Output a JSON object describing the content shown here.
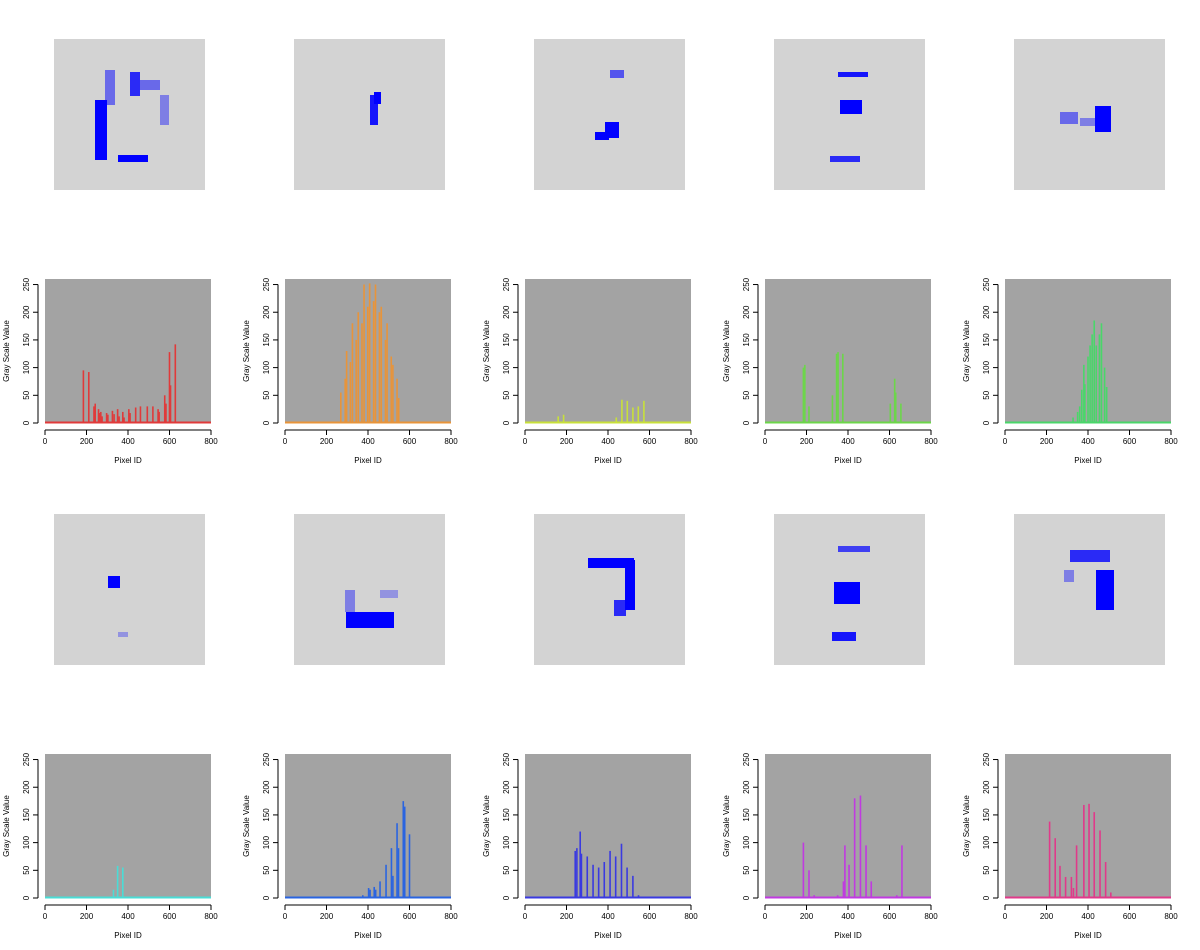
{
  "chart_data": [
    {
      "type": "bar",
      "xlabel": "Pixel ID",
      "ylabel": "Gray Scale Value",
      "xlim": [
        0,
        800
      ],
      "ylim": [
        0,
        260
      ],
      "xticks": [
        0,
        200,
        400,
        600,
        800
      ],
      "yticks": [
        0,
        50,
        100,
        150,
        200,
        250
      ],
      "color": "#e03a3a",
      "image_color": "#0000ff",
      "background": "#a3a3a3",
      "grid": false,
      "x": [
        185,
        211,
        236,
        242,
        258,
        264,
        269,
        275,
        297,
        303,
        325,
        333,
        350,
        357,
        375,
        381,
        404,
        410,
        437,
        460,
        493,
        520,
        545,
        550,
        577,
        583,
        600,
        605,
        628
      ],
      "values": [
        95,
        92,
        30,
        35,
        25,
        18,
        20,
        12,
        18,
        15,
        22,
        16,
        25,
        12,
        20,
        10,
        25,
        18,
        28,
        30,
        30,
        30,
        25,
        20,
        50,
        35,
        128,
        68,
        142
      ]
    },
    {
      "type": "bar",
      "xlabel": "Pixel ID",
      "ylabel": "Gray Scale Value",
      "xlim": [
        0,
        800
      ],
      "ylim": [
        0,
        260
      ],
      "xticks": [
        0,
        200,
        400,
        600,
        800
      ],
      "yticks": [
        0,
        50,
        100,
        150,
        200,
        250
      ],
      "color": "#e8943a",
      "image_color": "#0000ff",
      "background": "#a3a3a3",
      "grid": false,
      "x": [
        269,
        290,
        297,
        315,
        325,
        343,
        353,
        371,
        381,
        399,
        408,
        427,
        436,
        455,
        464,
        484,
        492,
        512,
        520,
        540,
        548
      ],
      "values": [
        55,
        80,
        130,
        110,
        180,
        150,
        200,
        180,
        250,
        210,
        252,
        220,
        250,
        200,
        210,
        150,
        180,
        120,
        105,
        80,
        45
      ]
    },
    {
      "type": "bar",
      "xlabel": "Pixel ID",
      "ylabel": "Gray Scale Value",
      "xlim": [
        0,
        800
      ],
      "ylim": [
        0,
        260
      ],
      "xticks": [
        0,
        200,
        400,
        600,
        800
      ],
      "yticks": [
        0,
        50,
        100,
        150,
        200,
        250
      ],
      "color": "#c8e03a",
      "image_color": "#0000ff",
      "background": "#a3a3a3",
      "grid": false,
      "x": [
        160,
        186,
        440,
        467,
        493,
        520,
        546,
        573
      ],
      "values": [
        12,
        15,
        10,
        42,
        40,
        28,
        30,
        40
      ]
    },
    {
      "type": "bar",
      "xlabel": "Pixel ID",
      "ylabel": "Gray Scale Value",
      "xlim": [
        0,
        800
      ],
      "ylim": [
        0,
        260
      ],
      "xticks": [
        0,
        200,
        400,
        600,
        800
      ],
      "yticks": [
        0,
        50,
        100,
        150,
        200,
        250
      ],
      "color": "#6cd64a",
      "image_color": "#0000ff",
      "background": "#a3a3a3",
      "grid": false,
      "x": [
        185,
        192,
        212,
        325,
        345,
        352,
        375,
        604,
        625,
        630,
        655
      ],
      "values": [
        100,
        105,
        30,
        50,
        125,
        128,
        125,
        35,
        80,
        55,
        35
      ]
    },
    {
      "type": "bar",
      "xlabel": "Pixel ID",
      "ylabel": "Gray Scale Value",
      "xlim": [
        0,
        800
      ],
      "ylim": [
        0,
        260
      ],
      "xticks": [
        0,
        200,
        400,
        600,
        800
      ],
      "yticks": [
        0,
        50,
        100,
        150,
        200,
        250
      ],
      "color": "#4ad66a",
      "image_color": "#0000ff",
      "background": "#a3a3a3",
      "grid": false,
      "x": [
        328,
        350,
        360,
        370,
        380,
        385,
        400,
        410,
        420,
        430,
        440,
        455,
        465,
        480,
        490
      ],
      "values": [
        10,
        20,
        30,
        60,
        105,
        70,
        120,
        140,
        160,
        185,
        140,
        160,
        180,
        100,
        65
      ]
    },
    {
      "type": "bar",
      "xlabel": "Pixel ID",
      "ylabel": "Gray Scale Value",
      "xlim": [
        0,
        800
      ],
      "ylim": [
        0,
        260
      ],
      "xticks": [
        0,
        200,
        400,
        600,
        800
      ],
      "yticks": [
        0,
        50,
        100,
        150,
        200,
        250
      ],
      "color": "#4adcd6",
      "image_color": "#0000ff",
      "background": "#a3a3a3",
      "grid": false,
      "x": [
        330,
        350,
        375,
        630
      ],
      "values": [
        15,
        58,
        55,
        3
      ]
    },
    {
      "type": "bar",
      "xlabel": "Pixel ID",
      "ylabel": "Gray Scale Value",
      "xlim": [
        0,
        800
      ],
      "ylim": [
        0,
        260
      ],
      "xticks": [
        0,
        200,
        400,
        600,
        800
      ],
      "yticks": [
        0,
        50,
        100,
        150,
        200,
        250
      ],
      "color": "#2a64e0",
      "image_color": "#0000ff",
      "background": "#a3a3a3",
      "grid": false,
      "x": [
        375,
        403,
        410,
        430,
        437,
        458,
        487,
        513,
        520,
        540,
        547,
        570,
        577,
        600
      ],
      "values": [
        5,
        18,
        15,
        20,
        15,
        30,
        60,
        90,
        40,
        135,
        90,
        175,
        165,
        115
      ]
    },
    {
      "type": "bar",
      "xlabel": "Pixel ID",
      "ylabel": "Gray Scale Value",
      "xlim": [
        0,
        800
      ],
      "ylim": [
        0,
        260
      ],
      "xticks": [
        0,
        200,
        400,
        600,
        800
      ],
      "yticks": [
        0,
        50,
        100,
        150,
        200,
        250
      ],
      "color": "#3a3ae0",
      "image_color": "#0000ff",
      "background": "#a3a3a3",
      "grid": false,
      "x": [
        242,
        250,
        266,
        272,
        300,
        328,
        355,
        382,
        410,
        437,
        465,
        492,
        520,
        547
      ],
      "values": [
        85,
        90,
        120,
        80,
        75,
        60,
        55,
        65,
        85,
        75,
        98,
        55,
        40,
        5
      ]
    },
    {
      "type": "bar",
      "xlabel": "Pixel ID",
      "ylabel": "Gray Scale Value",
      "xlim": [
        0,
        800
      ],
      "ylim": [
        0,
        260
      ],
      "xticks": [
        0,
        200,
        400,
        600,
        800
      ],
      "yticks": [
        0,
        50,
        100,
        150,
        200,
        250
      ],
      "color": "#c03ae0",
      "image_color": "#0000ff",
      "background": "#a3a3a3",
      "grid": false,
      "x": [
        185,
        212,
        237,
        350,
        378,
        385,
        405,
        432,
        460,
        487,
        512,
        635,
        660
      ],
      "values": [
        100,
        50,
        5,
        5,
        30,
        95,
        60,
        180,
        185,
        95,
        30,
        5,
        95
      ]
    },
    {
      "type": "bar",
      "xlabel": "Pixel ID",
      "ylabel": "Gray Scale Value",
      "xlim": [
        0,
        800
      ],
      "ylim": [
        0,
        260
      ],
      "xticks": [
        0,
        200,
        400,
        600,
        800
      ],
      "yticks": [
        0,
        50,
        100,
        150,
        200,
        250
      ],
      "color": "#e03a8a",
      "image_color": "#0000ff",
      "background": "#a3a3a3",
      "grid": false,
      "x": [
        215,
        242,
        265,
        292,
        320,
        330,
        345,
        380,
        405,
        430,
        458,
        485,
        510
      ],
      "values": [
        138,
        108,
        58,
        38,
        38,
        18,
        95,
        168,
        170,
        155,
        122,
        65,
        10
      ]
    }
  ]
}
